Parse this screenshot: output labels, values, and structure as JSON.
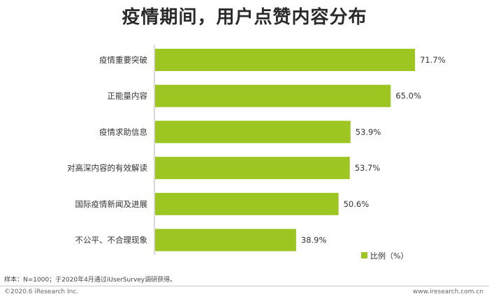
{
  "title": "疫情期间，用户点赞内容分布",
  "chart_data": {
    "type": "bar",
    "orientation": "horizontal",
    "categories": [
      "疫情重要突破",
      "正能量内容",
      "疫情求助信息",
      "对高深内容的有效解读",
      "国际疫情新闻及进展",
      "不公平、不合理现象"
    ],
    "series": [
      {
        "name": "比例（%）",
        "values": [
          71.7,
          65.0,
          53.9,
          53.7,
          50.6,
          38.9
        ],
        "labels": [
          "71.7%",
          "65.0%",
          "53.9%",
          "53.7%",
          "50.6%",
          "38.9%"
        ],
        "color": "#9dc623"
      }
    ],
    "xlim": [
      0,
      100
    ],
    "grid": false,
    "legend_position": "bottom-right"
  },
  "footnote": "样本：N=1000；于2020年4月通过iUserSurvey调研获得。",
  "copyright": "©2020.6 iResearch Inc.",
  "website": "www.iresearch.com.cn"
}
